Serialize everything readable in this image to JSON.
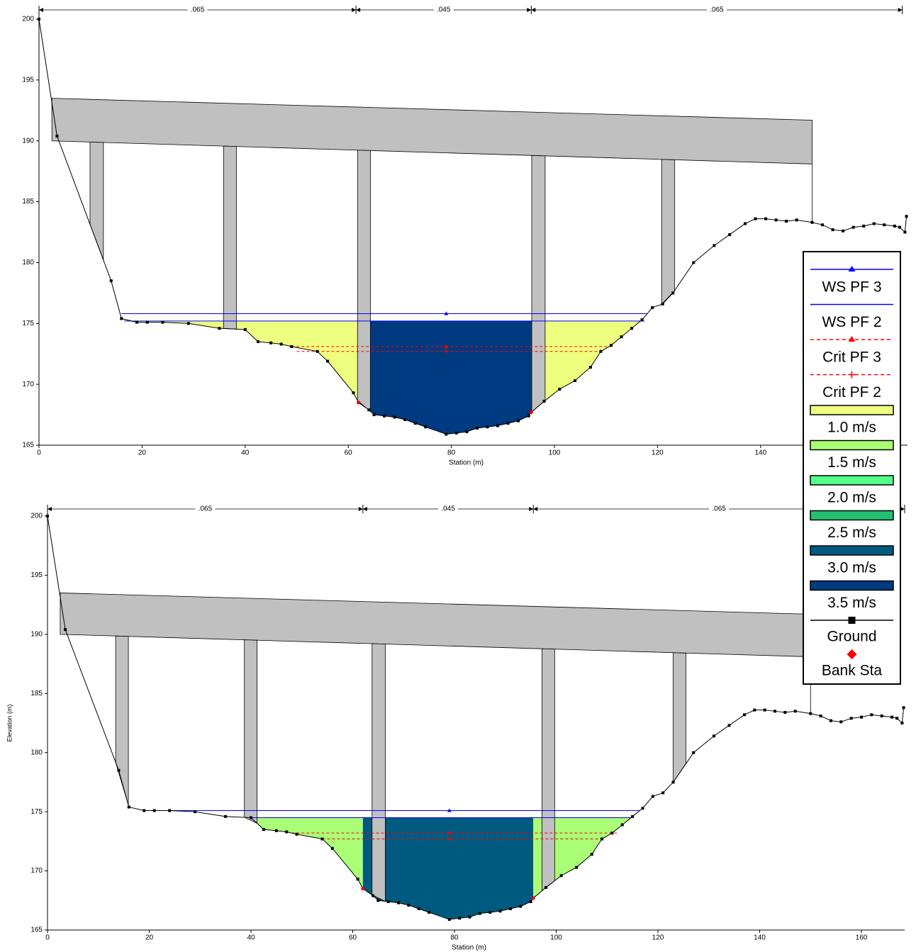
{
  "chart_data": [
    {
      "type": "cross-section",
      "x_label": "Station (m)",
      "xlim": [
        0,
        168.5
      ],
      "ylim": [
        165,
        200
      ],
      "xticks": [
        0,
        20,
        40,
        60,
        80,
        100,
        120,
        140
      ],
      "yticks": [
        165,
        170,
        175,
        180,
        185,
        190,
        195,
        200
      ],
      "manning": {
        "breaks": [
          0,
          61.5,
          95.5,
          167.5
        ],
        "labels": [
          ".065",
          ".045",
          ".065"
        ]
      },
      "deck": {
        "x": [
          2.5,
          150
        ],
        "top": [
          193.5,
          191.7
        ],
        "bottom": [
          190,
          188.1
        ],
        "color": "#c0c0c0"
      },
      "piers": [
        {
          "x0": 9.9,
          "x1": 12.5
        },
        {
          "x0": 35.8,
          "x1": 38.3
        },
        {
          "x0": 61.8,
          "x1": 64.3
        },
        {
          "x0": 95.6,
          "x1": 98.2
        },
        {
          "x0": 120.8,
          "x1": 123.3
        }
      ],
      "flow_zones": [
        {
          "x0": 16.5,
          "x1": 62,
          "velocity": 0
        },
        {
          "x0": 62,
          "x1": 95.6,
          "velocity": 5
        },
        {
          "x0": 95.6,
          "x1": 117.5,
          "velocity": 0
        }
      ],
      "flow_level": 1,
      "water_surfaces": [
        {
          "name": "WS PF 3",
          "value": 175.8,
          "x": [
            16,
            118
          ],
          "color": "#0000ff",
          "dashed": false,
          "marker": "triangle"
        },
        {
          "name": "WS PF 2",
          "value": 175.2,
          "x": [
            16.5,
            117.5
          ],
          "color": "#0000ff",
          "dashed": false,
          "marker": null
        },
        {
          "name": "Crit PF 3",
          "value": 173.1,
          "x": [
            49,
            111
          ],
          "color": "#ff0000",
          "dashed": true,
          "marker": "triangle"
        },
        {
          "name": "Crit PF 2",
          "value": 172.7,
          "x": [
            50,
            109
          ],
          "color": "#ff0000",
          "dashed": true,
          "marker": "plus"
        }
      ],
      "ground": {
        "name": "Ground",
        "color": "#000000",
        "x": [
          0,
          3.5,
          14,
          16,
          19,
          21,
          24,
          29,
          35,
          40,
          42.5,
          45,
          47,
          49,
          54,
          56,
          61,
          62,
          64,
          65,
          67,
          69,
          71,
          73,
          75,
          79,
          81,
          83,
          85,
          87,
          89,
          91,
          93,
          95,
          95.5,
          98,
          101,
          104,
          107,
          109,
          111,
          113,
          115,
          117,
          119,
          121,
          123,
          127,
          131,
          134,
          137,
          139,
          141,
          143,
          145,
          147,
          150,
          152,
          154,
          156,
          158,
          160,
          162,
          164,
          166,
          167,
          168,
          168.3
        ],
        "values": [
          200,
          190.4,
          178.5,
          175.4,
          175.1,
          175.1,
          175.1,
          175.0,
          174.6,
          174.5,
          173.5,
          173.4,
          173.3,
          173.1,
          172.7,
          171.9,
          169.3,
          168.5,
          167.9,
          167.5,
          167.4,
          167.3,
          167.1,
          166.8,
          166.5,
          165.9,
          166.0,
          166.1,
          166.4,
          166.5,
          166.6,
          166.8,
          167.0,
          167.4,
          167.7,
          168.6,
          169.6,
          170.3,
          171.4,
          172.7,
          173.2,
          173.9,
          174.6,
          175.3,
          176.3,
          176.6,
          177.5,
          180.0,
          181.4,
          182.3,
          183.2,
          183.6,
          183.6,
          183.5,
          183.4,
          183.5,
          183.3,
          183.1,
          182.7,
          182.6,
          182.9,
          183.0,
          183.2,
          183.1,
          183.0,
          182.9,
          182.5,
          183.8
        ]
      },
      "bank_stations": {
        "name": "Bank Sta",
        "color": "#ff0000",
        "x": [
          62,
          95.5
        ],
        "values": [
          168.5,
          167.7
        ]
      }
    },
    {
      "type": "cross-section",
      "x_label": "Station (m)",
      "y_label": "Elevation (m)",
      "xlim": [
        0,
        168.5
      ],
      "ylim": [
        165,
        200
      ],
      "xticks": [
        0,
        20,
        40,
        60,
        80,
        100,
        120,
        140,
        160
      ],
      "yticks": [
        165,
        170,
        175,
        180,
        185,
        190,
        195,
        200
      ],
      "manning": {
        "breaks": [
          0,
          62,
          95.5,
          168.5
        ],
        "labels": [
          ".065",
          ".045",
          ".065"
        ]
      },
      "deck": {
        "x": [
          2.5,
          150
        ],
        "top": [
          193.5,
          191.7
        ],
        "bottom": [
          190,
          188.1
        ],
        "color": "#c0c0c0"
      },
      "piers": [
        {
          "x0": 13.4,
          "x1": 15.9
        },
        {
          "x0": 38.7,
          "x1": 41.2
        },
        {
          "x0": 63.8,
          "x1": 66.4
        },
        {
          "x0": 97.2,
          "x1": 99.7
        },
        {
          "x0": 123,
          "x1": 125.5
        }
      ],
      "flow_zones": [
        {
          "x0": 40,
          "x1": 62,
          "velocity": 1
        },
        {
          "x0": 62,
          "x1": 95.5,
          "velocity": 4
        },
        {
          "x0": 95.5,
          "x1": 115,
          "velocity": 1
        }
      ],
      "flow_level": 1,
      "water_surfaces": [
        {
          "name": "WS PF 3",
          "value": 175.1,
          "x": [
            19,
            116.5
          ],
          "color": "#0000ff",
          "dashed": false,
          "marker": "triangle"
        },
        {
          "name": "WS PF 2",
          "value": 174.5,
          "x": [
            40,
            115
          ],
          "color": "#0000ff",
          "dashed": false,
          "marker": null
        },
        {
          "name": "Crit PF 3",
          "value": 173.2,
          "x": [
            48,
            112
          ],
          "color": "#ff0000",
          "dashed": true,
          "marker": "triangle"
        },
        {
          "name": "Crit PF 2",
          "value": 172.7,
          "x": [
            54,
            109
          ],
          "color": "#ff0000",
          "dashed": true,
          "marker": "plus"
        }
      ],
      "ground": {
        "name": "Ground",
        "color": "#000000",
        "x": [
          0,
          3.5,
          14,
          16,
          19,
          21,
          24,
          29,
          35,
          40,
          42.5,
          45,
          47,
          49,
          54,
          56,
          61,
          62,
          64,
          65,
          67,
          69,
          71,
          73,
          75,
          79,
          81,
          83,
          85,
          87,
          89,
          91,
          93,
          95,
          95.5,
          98,
          101,
          104,
          107,
          109,
          111,
          113,
          115,
          117,
          119,
          121,
          123,
          127,
          131,
          134,
          137,
          139,
          141,
          143,
          145,
          147,
          150,
          152,
          154,
          156,
          158,
          160,
          162,
          164,
          166,
          167,
          168,
          168.3
        ],
        "values": [
          200,
          190.4,
          178.5,
          175.4,
          175.1,
          175.1,
          175.1,
          175.0,
          174.6,
          174.5,
          173.5,
          173.4,
          173.3,
          173.1,
          172.7,
          171.9,
          169.3,
          168.5,
          167.9,
          167.5,
          167.4,
          167.3,
          167.1,
          166.8,
          166.5,
          165.9,
          166.0,
          166.1,
          166.4,
          166.5,
          166.6,
          166.8,
          167.0,
          167.4,
          167.7,
          168.6,
          169.6,
          170.3,
          171.4,
          172.7,
          173.2,
          173.9,
          174.6,
          175.3,
          176.3,
          176.6,
          177.5,
          180.0,
          181.4,
          182.3,
          183.2,
          183.6,
          183.6,
          183.5,
          183.4,
          183.5,
          183.3,
          183.1,
          182.7,
          182.6,
          182.9,
          183.0,
          183.2,
          183.1,
          183.0,
          182.9,
          182.5,
          183.8
        ]
      },
      "bank_stations": {
        "name": "Bank Sta",
        "color": "#ff0000",
        "x": [
          62,
          95.5
        ],
        "values": [
          168.5,
          167.7
        ]
      }
    }
  ],
  "velocity_legend": [
    {
      "label": "1.0 m/s",
      "color": "#eeff80"
    },
    {
      "label": "1.5 m/s",
      "color": "#aaff77"
    },
    {
      "label": "2.0 m/s",
      "color": "#55ff88"
    },
    {
      "label": "2.5 m/s",
      "color": "#22c070"
    },
    {
      "label": "3.0 m/s",
      "color": "#005a80"
    },
    {
      "label": "3.5 m/s",
      "color": "#003a80"
    }
  ]
}
